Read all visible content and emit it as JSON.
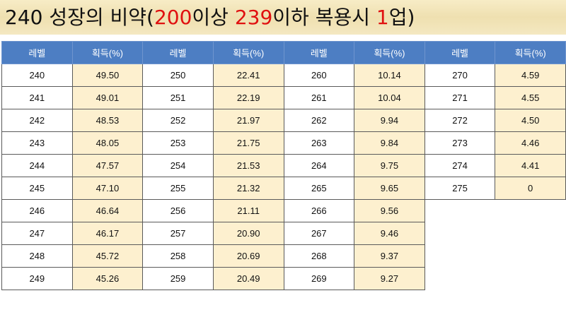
{
  "title": {
    "part1": "240 성장의 비약(",
    "red1": "200",
    "part2": "이상 ",
    "red2": "239",
    "part3": "이하 복용시 ",
    "red3": "1",
    "part4": "업)"
  },
  "table": {
    "header_level": "레벨",
    "header_gain": "획득(%)",
    "columns": [
      {
        "levels": [
          "240",
          "241",
          "242",
          "243",
          "244",
          "245",
          "246",
          "247",
          "248",
          "249"
        ],
        "gains": [
          "49.50",
          "49.01",
          "48.53",
          "48.05",
          "47.57",
          "47.10",
          "46.64",
          "46.17",
          "45.72",
          "45.26"
        ]
      },
      {
        "levels": [
          "250",
          "251",
          "252",
          "253",
          "254",
          "255",
          "256",
          "257",
          "258",
          "259"
        ],
        "gains": [
          "22.41",
          "22.19",
          "21.97",
          "21.75",
          "21.53",
          "21.32",
          "21.11",
          "20.90",
          "20.69",
          "20.49"
        ]
      },
      {
        "levels": [
          "260",
          "261",
          "262",
          "263",
          "264",
          "265",
          "266",
          "267",
          "268",
          "269"
        ],
        "gains": [
          "10.14",
          "10.04",
          "9.94",
          "9.84",
          "9.75",
          "9.65",
          "9.56",
          "9.46",
          "9.37",
          "9.27"
        ]
      },
      {
        "levels": [
          "270",
          "271",
          "272",
          "273",
          "274",
          "275"
        ],
        "gains": [
          "4.59",
          "4.55",
          "4.50",
          "4.46",
          "4.41",
          "0"
        ]
      }
    ]
  }
}
